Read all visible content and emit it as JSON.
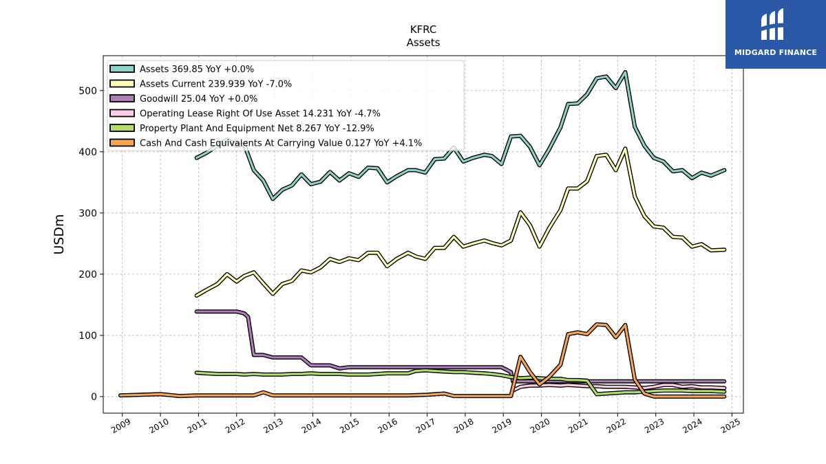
{
  "logo": {
    "text": "MIDGARD FINANCE"
  },
  "chart_data": {
    "type": "line",
    "title": "KFRC",
    "subtitle": "Assets",
    "ylabel": "USDm",
    "xlabel": "",
    "xlim": [
      2008.5,
      2025.3
    ],
    "ylim": [
      -27,
      557
    ],
    "yticks": [
      0,
      100,
      200,
      300,
      400,
      500
    ],
    "xticks": [
      "2009",
      "2010",
      "2011",
      "2012",
      "2013",
      "2014",
      "2015",
      "2016",
      "2017",
      "2018",
      "2019",
      "2020",
      "2021",
      "2022",
      "2023",
      "2024",
      "2025"
    ],
    "grid": true,
    "legend_position": "upper-left",
    "series": [
      {
        "name": "Assets",
        "legend": "Assets  369.85 YoY +0.0%",
        "color": "#8dd3c7",
        "points": [
          [
            2010.95,
            390
          ],
          [
            2011.2,
            398
          ],
          [
            2011.5,
            410
          ],
          [
            2011.75,
            420
          ],
          [
            2012.0,
            410
          ],
          [
            2012.2,
            412
          ],
          [
            2012.45,
            370
          ],
          [
            2012.7,
            353
          ],
          [
            2012.95,
            323
          ],
          [
            2013.2,
            338
          ],
          [
            2013.45,
            345
          ],
          [
            2013.7,
            363
          ],
          [
            2013.95,
            347
          ],
          [
            2014.2,
            351
          ],
          [
            2014.45,
            367
          ],
          [
            2014.7,
            353
          ],
          [
            2014.95,
            365
          ],
          [
            2015.2,
            359
          ],
          [
            2015.45,
            374
          ],
          [
            2015.7,
            373
          ],
          [
            2015.95,
            350
          ],
          [
            2016.2,
            360
          ],
          [
            2016.5,
            370
          ],
          [
            2016.7,
            370
          ],
          [
            2016.95,
            366
          ],
          [
            2017.2,
            388
          ],
          [
            2017.45,
            389
          ],
          [
            2017.7,
            407
          ],
          [
            2017.95,
            384
          ],
          [
            2018.2,
            390
          ],
          [
            2018.5,
            395
          ],
          [
            2018.7,
            393
          ],
          [
            2018.95,
            380
          ],
          [
            2019.2,
            425
          ],
          [
            2019.45,
            426
          ],
          [
            2019.7,
            408
          ],
          [
            2019.95,
            378
          ],
          [
            2020.2,
            404
          ],
          [
            2020.5,
            440
          ],
          [
            2020.7,
            478
          ],
          [
            2020.95,
            479
          ],
          [
            2021.2,
            494
          ],
          [
            2021.45,
            520
          ],
          [
            2021.7,
            523
          ],
          [
            2021.95,
            504
          ],
          [
            2022.2,
            530
          ],
          [
            2022.45,
            441
          ],
          [
            2022.7,
            410
          ],
          [
            2022.95,
            390
          ],
          [
            2023.2,
            384
          ],
          [
            2023.45,
            368
          ],
          [
            2023.7,
            370
          ],
          [
            2023.95,
            357
          ],
          [
            2024.2,
            366
          ],
          [
            2024.45,
            361
          ],
          [
            2024.8,
            370
          ]
        ]
      },
      {
        "name": "Assets Current",
        "legend": "Assets Current  239.939 YoY -7.0%",
        "color": "#ffffb3",
        "points": [
          [
            2010.95,
            165
          ],
          [
            2011.2,
            174
          ],
          [
            2011.5,
            184
          ],
          [
            2011.75,
            200
          ],
          [
            2012.0,
            188
          ],
          [
            2012.2,
            197
          ],
          [
            2012.45,
            203
          ],
          [
            2012.7,
            185
          ],
          [
            2012.95,
            168
          ],
          [
            2013.2,
            184
          ],
          [
            2013.45,
            189
          ],
          [
            2013.7,
            206
          ],
          [
            2013.95,
            203
          ],
          [
            2014.2,
            211
          ],
          [
            2014.45,
            225
          ],
          [
            2014.7,
            220
          ],
          [
            2014.95,
            226
          ],
          [
            2015.2,
            223
          ],
          [
            2015.45,
            235
          ],
          [
            2015.7,
            235
          ],
          [
            2015.95,
            213
          ],
          [
            2016.2,
            225
          ],
          [
            2016.5,
            235
          ],
          [
            2016.7,
            229
          ],
          [
            2016.95,
            225
          ],
          [
            2017.2,
            243
          ],
          [
            2017.45,
            243
          ],
          [
            2017.7,
            261
          ],
          [
            2017.95,
            245
          ],
          [
            2018.2,
            250
          ],
          [
            2018.5,
            255
          ],
          [
            2018.7,
            251
          ],
          [
            2018.95,
            247
          ],
          [
            2019.2,
            255
          ],
          [
            2019.45,
            301
          ],
          [
            2019.7,
            280
          ],
          [
            2019.95,
            245
          ],
          [
            2020.2,
            275
          ],
          [
            2020.5,
            305
          ],
          [
            2020.7,
            340
          ],
          [
            2020.95,
            340
          ],
          [
            2021.2,
            352
          ],
          [
            2021.45,
            393
          ],
          [
            2021.7,
            395
          ],
          [
            2021.95,
            370
          ],
          [
            2022.2,
            405
          ],
          [
            2022.45,
            327
          ],
          [
            2022.7,
            295
          ],
          [
            2022.95,
            278
          ],
          [
            2023.2,
            276
          ],
          [
            2023.45,
            261
          ],
          [
            2023.7,
            260
          ],
          [
            2023.95,
            245
          ],
          [
            2024.2,
            249
          ],
          [
            2024.45,
            239
          ],
          [
            2024.8,
            240
          ]
        ]
      },
      {
        "name": "Goodwill",
        "legend": "Goodwill  25.04 YoY +0.0%",
        "color": "#bebada",
        "stroke": "#b07cbb",
        "points": [
          [
            2010.95,
            139
          ],
          [
            2011.2,
            139
          ],
          [
            2011.5,
            139
          ],
          [
            2011.75,
            139
          ],
          [
            2012.0,
            139
          ],
          [
            2012.2,
            136
          ],
          [
            2012.3,
            130
          ],
          [
            2012.45,
            68
          ],
          [
            2012.7,
            68
          ],
          [
            2012.95,
            64
          ],
          [
            2013.2,
            64
          ],
          [
            2013.45,
            64
          ],
          [
            2013.7,
            64
          ],
          [
            2013.95,
            51
          ],
          [
            2014.2,
            51
          ],
          [
            2014.45,
            51
          ],
          [
            2014.7,
            46
          ],
          [
            2014.95,
            48
          ],
          [
            2015.2,
            48
          ],
          [
            2015.45,
            48
          ],
          [
            2015.7,
            48
          ],
          [
            2015.95,
            48
          ],
          [
            2016.2,
            48
          ],
          [
            2016.5,
            48
          ],
          [
            2016.7,
            48
          ],
          [
            2016.95,
            48
          ],
          [
            2017.2,
            48
          ],
          [
            2017.45,
            48
          ],
          [
            2017.7,
            48
          ],
          [
            2017.95,
            48
          ],
          [
            2018.2,
            48
          ],
          [
            2018.5,
            48
          ],
          [
            2018.7,
            48
          ],
          [
            2018.95,
            48
          ],
          [
            2019.2,
            40
          ],
          [
            2019.25,
            25
          ],
          [
            2019.7,
            25
          ],
          [
            2020.2,
            25
          ],
          [
            2020.7,
            25
          ],
          [
            2021.2,
            25
          ],
          [
            2021.7,
            25
          ],
          [
            2022.2,
            25
          ],
          [
            2022.7,
            25
          ],
          [
            2023.2,
            25
          ],
          [
            2023.7,
            25
          ],
          [
            2024.2,
            25
          ],
          [
            2024.8,
            25
          ]
        ]
      },
      {
        "name": "Operating Lease Right Of Use Asset",
        "legend": "Operating Lease Right Of Use Asset  14.231 YoY -4.7%",
        "color": "#fccde5",
        "points": [
          [
            2019.25,
            10
          ],
          [
            2019.45,
            16
          ],
          [
            2019.7,
            18
          ],
          [
            2019.95,
            18
          ],
          [
            2020.2,
            19
          ],
          [
            2020.5,
            18
          ],
          [
            2020.7,
            19
          ],
          [
            2020.95,
            18
          ],
          [
            2021.2,
            17
          ],
          [
            2021.45,
            17
          ],
          [
            2021.7,
            16
          ],
          [
            2021.95,
            16
          ],
          [
            2022.2,
            16
          ],
          [
            2022.45,
            15
          ],
          [
            2022.7,
            14
          ],
          [
            2022.95,
            16
          ],
          [
            2023.2,
            19
          ],
          [
            2023.45,
            19
          ],
          [
            2023.7,
            16
          ],
          [
            2023.95,
            17
          ],
          [
            2024.2,
            15
          ],
          [
            2024.45,
            15
          ],
          [
            2024.8,
            14
          ]
        ]
      },
      {
        "name": "Property Plant And Equipment Net",
        "legend": "Property Plant And Equipment Net  8.267 YoY -12.9%",
        "color": "#b3de69",
        "points": [
          [
            2010.95,
            39
          ],
          [
            2011.2,
            38
          ],
          [
            2011.5,
            37
          ],
          [
            2011.75,
            37
          ],
          [
            2012.0,
            37
          ],
          [
            2012.2,
            36
          ],
          [
            2012.45,
            37
          ],
          [
            2012.7,
            36
          ],
          [
            2012.95,
            36
          ],
          [
            2013.2,
            36
          ],
          [
            2013.45,
            37
          ],
          [
            2013.7,
            37
          ],
          [
            2013.95,
            38
          ],
          [
            2014.2,
            37
          ],
          [
            2014.45,
            37
          ],
          [
            2014.7,
            37
          ],
          [
            2014.95,
            36
          ],
          [
            2015.2,
            36
          ],
          [
            2015.45,
            36
          ],
          [
            2015.7,
            37
          ],
          [
            2015.95,
            38
          ],
          [
            2016.2,
            38
          ],
          [
            2016.5,
            38
          ],
          [
            2016.7,
            42
          ],
          [
            2016.95,
            43
          ],
          [
            2017.2,
            42
          ],
          [
            2017.45,
            41
          ],
          [
            2017.7,
            40
          ],
          [
            2017.95,
            40
          ],
          [
            2018.2,
            39
          ],
          [
            2018.5,
            38
          ],
          [
            2018.7,
            37
          ],
          [
            2018.95,
            35
          ],
          [
            2019.2,
            32
          ],
          [
            2019.45,
            30
          ],
          [
            2019.7,
            31
          ],
          [
            2019.95,
            30
          ],
          [
            2020.2,
            29
          ],
          [
            2020.5,
            29
          ],
          [
            2020.7,
            27
          ],
          [
            2020.95,
            27
          ],
          [
            2021.2,
            26
          ],
          [
            2021.45,
            4
          ],
          [
            2021.7,
            5
          ],
          [
            2021.95,
            6
          ],
          [
            2022.2,
            7
          ],
          [
            2022.45,
            7
          ],
          [
            2022.7,
            8
          ],
          [
            2022.95,
            9
          ],
          [
            2023.2,
            10
          ],
          [
            2023.45,
            10
          ],
          [
            2023.7,
            10
          ],
          [
            2023.95,
            9
          ],
          [
            2024.2,
            9
          ],
          [
            2024.45,
            9
          ],
          [
            2024.8,
            8
          ]
        ]
      },
      {
        "name": "Cash And Cash Equivalents At Carrying Value",
        "legend": "Cash And Cash Equivalents At Carrying Value  0.127 YoY +4.1%",
        "color": "#fdb462",
        "stroke": "#f7a654",
        "points": [
          [
            2008.95,
            2
          ],
          [
            2009.5,
            3
          ],
          [
            2010.0,
            4
          ],
          [
            2010.5,
            1
          ],
          [
            2010.95,
            2
          ],
          [
            2011.5,
            2
          ],
          [
            2012.0,
            2
          ],
          [
            2012.45,
            2
          ],
          [
            2012.7,
            7
          ],
          [
            2012.95,
            2
          ],
          [
            2013.5,
            2
          ],
          [
            2014.0,
            2
          ],
          [
            2014.5,
            2
          ],
          [
            2015.0,
            2
          ],
          [
            2015.5,
            2
          ],
          [
            2016.0,
            2
          ],
          [
            2016.5,
            2
          ],
          [
            2017.0,
            3
          ],
          [
            2017.45,
            5
          ],
          [
            2017.7,
            1
          ],
          [
            2018.2,
            1
          ],
          [
            2018.7,
            1
          ],
          [
            2019.2,
            1
          ],
          [
            2019.45,
            65
          ],
          [
            2019.7,
            40
          ],
          [
            2019.95,
            20
          ],
          [
            2020.2,
            32
          ],
          [
            2020.5,
            52
          ],
          [
            2020.7,
            102
          ],
          [
            2020.95,
            105
          ],
          [
            2021.2,
            102
          ],
          [
            2021.45,
            118
          ],
          [
            2021.7,
            117
          ],
          [
            2021.95,
            97
          ],
          [
            2022.2,
            117
          ],
          [
            2022.45,
            28
          ],
          [
            2022.7,
            5
          ],
          [
            2022.95,
            0.1
          ],
          [
            2023.5,
            0.1
          ],
          [
            2024.0,
            0.1
          ],
          [
            2024.8,
            0.1
          ]
        ]
      }
    ]
  }
}
